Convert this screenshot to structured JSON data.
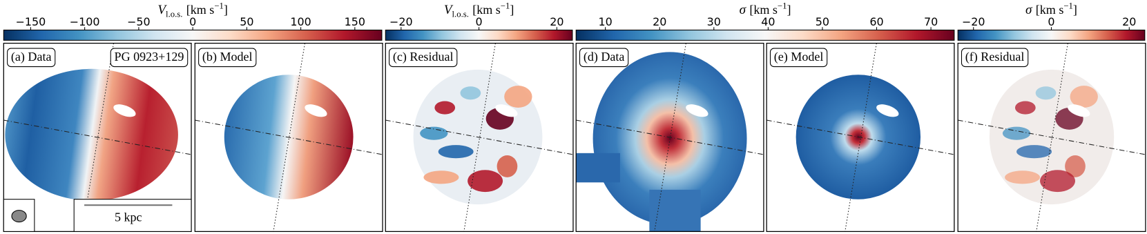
{
  "colorbars": [
    {
      "label": {
        "symbol": "V",
        "subscript": "l.o.s.",
        "unit": "[km s",
        "exponent": "−1",
        "close": "]"
      },
      "colormap": "RdBu_r",
      "lim": [
        -175,
        175
      ],
      "ticks": [
        {
          "value": -150,
          "label": "−150"
        },
        {
          "value": -100,
          "label": "−100"
        },
        {
          "value": -50,
          "label": "−50"
        },
        0,
        50,
        100,
        150
      ]
    },
    {
      "label": {
        "symbol": "V",
        "subscript": "l.o.s.",
        "unit": "[km s",
        "exponent": "−1",
        "close": "]"
      },
      "colormap": "RdBu_r",
      "lim": [
        -24,
        24
      ],
      "ticks": [
        {
          "value": -20,
          "label": "−20"
        },
        0,
        20
      ]
    },
    {
      "label": {
        "symbol": "σ",
        "subscript": "",
        "unit": "[km s",
        "exponent": "−1",
        "close": "]"
      },
      "colormap": "RdBu_r",
      "lim": [
        4.6,
        74.3
      ],
      "ticks": [
        10,
        20,
        30,
        40,
        50,
        60,
        70
      ]
    },
    {
      "label": {
        "symbol": "σ",
        "subscript": "",
        "unit": "[km s",
        "exponent": "−1",
        "close": "]"
      },
      "colormap": "RdBu_r",
      "lim": [
        -24,
        24
      ],
      "ticks": [
        {
          "value": -20,
          "label": "−20"
        },
        0,
        20
      ]
    }
  ],
  "panels": [
    {
      "label": "(a) Data",
      "object": "PG 0923+129"
    },
    {
      "label": "(b) Model"
    },
    {
      "label": "(c) Residual"
    },
    {
      "label": "(d) Data"
    },
    {
      "label": "(e) Model"
    },
    {
      "label": "(f) Residual"
    }
  ],
  "scalebar": "5 kpc"
}
